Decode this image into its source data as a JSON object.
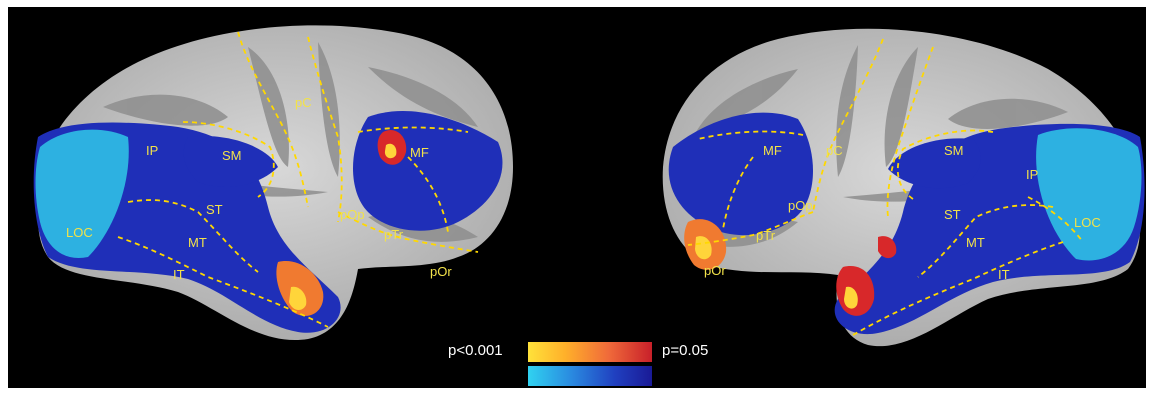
{
  "left_hemisphere": {
    "regions": [
      "pC",
      "IP",
      "SM",
      "MF",
      "ST",
      "LOC",
      "MT",
      "pOp",
      "pTr",
      "IT",
      "pOr"
    ]
  },
  "right_hemisphere": {
    "regions": [
      "MF",
      "pC",
      "SM",
      "IP",
      "pOp",
      "ST",
      "LOC",
      "pTr",
      "MT",
      "pOr",
      "IT"
    ]
  },
  "legend": {
    "low_label": "p<0.001",
    "high_label": "p=0.05",
    "warm_colors": [
      "#ffe23a",
      "#f06a3a",
      "#c8202a"
    ],
    "cool_colors": [
      "#30d2f0",
      "#2040c0",
      "#1a1a96"
    ]
  }
}
